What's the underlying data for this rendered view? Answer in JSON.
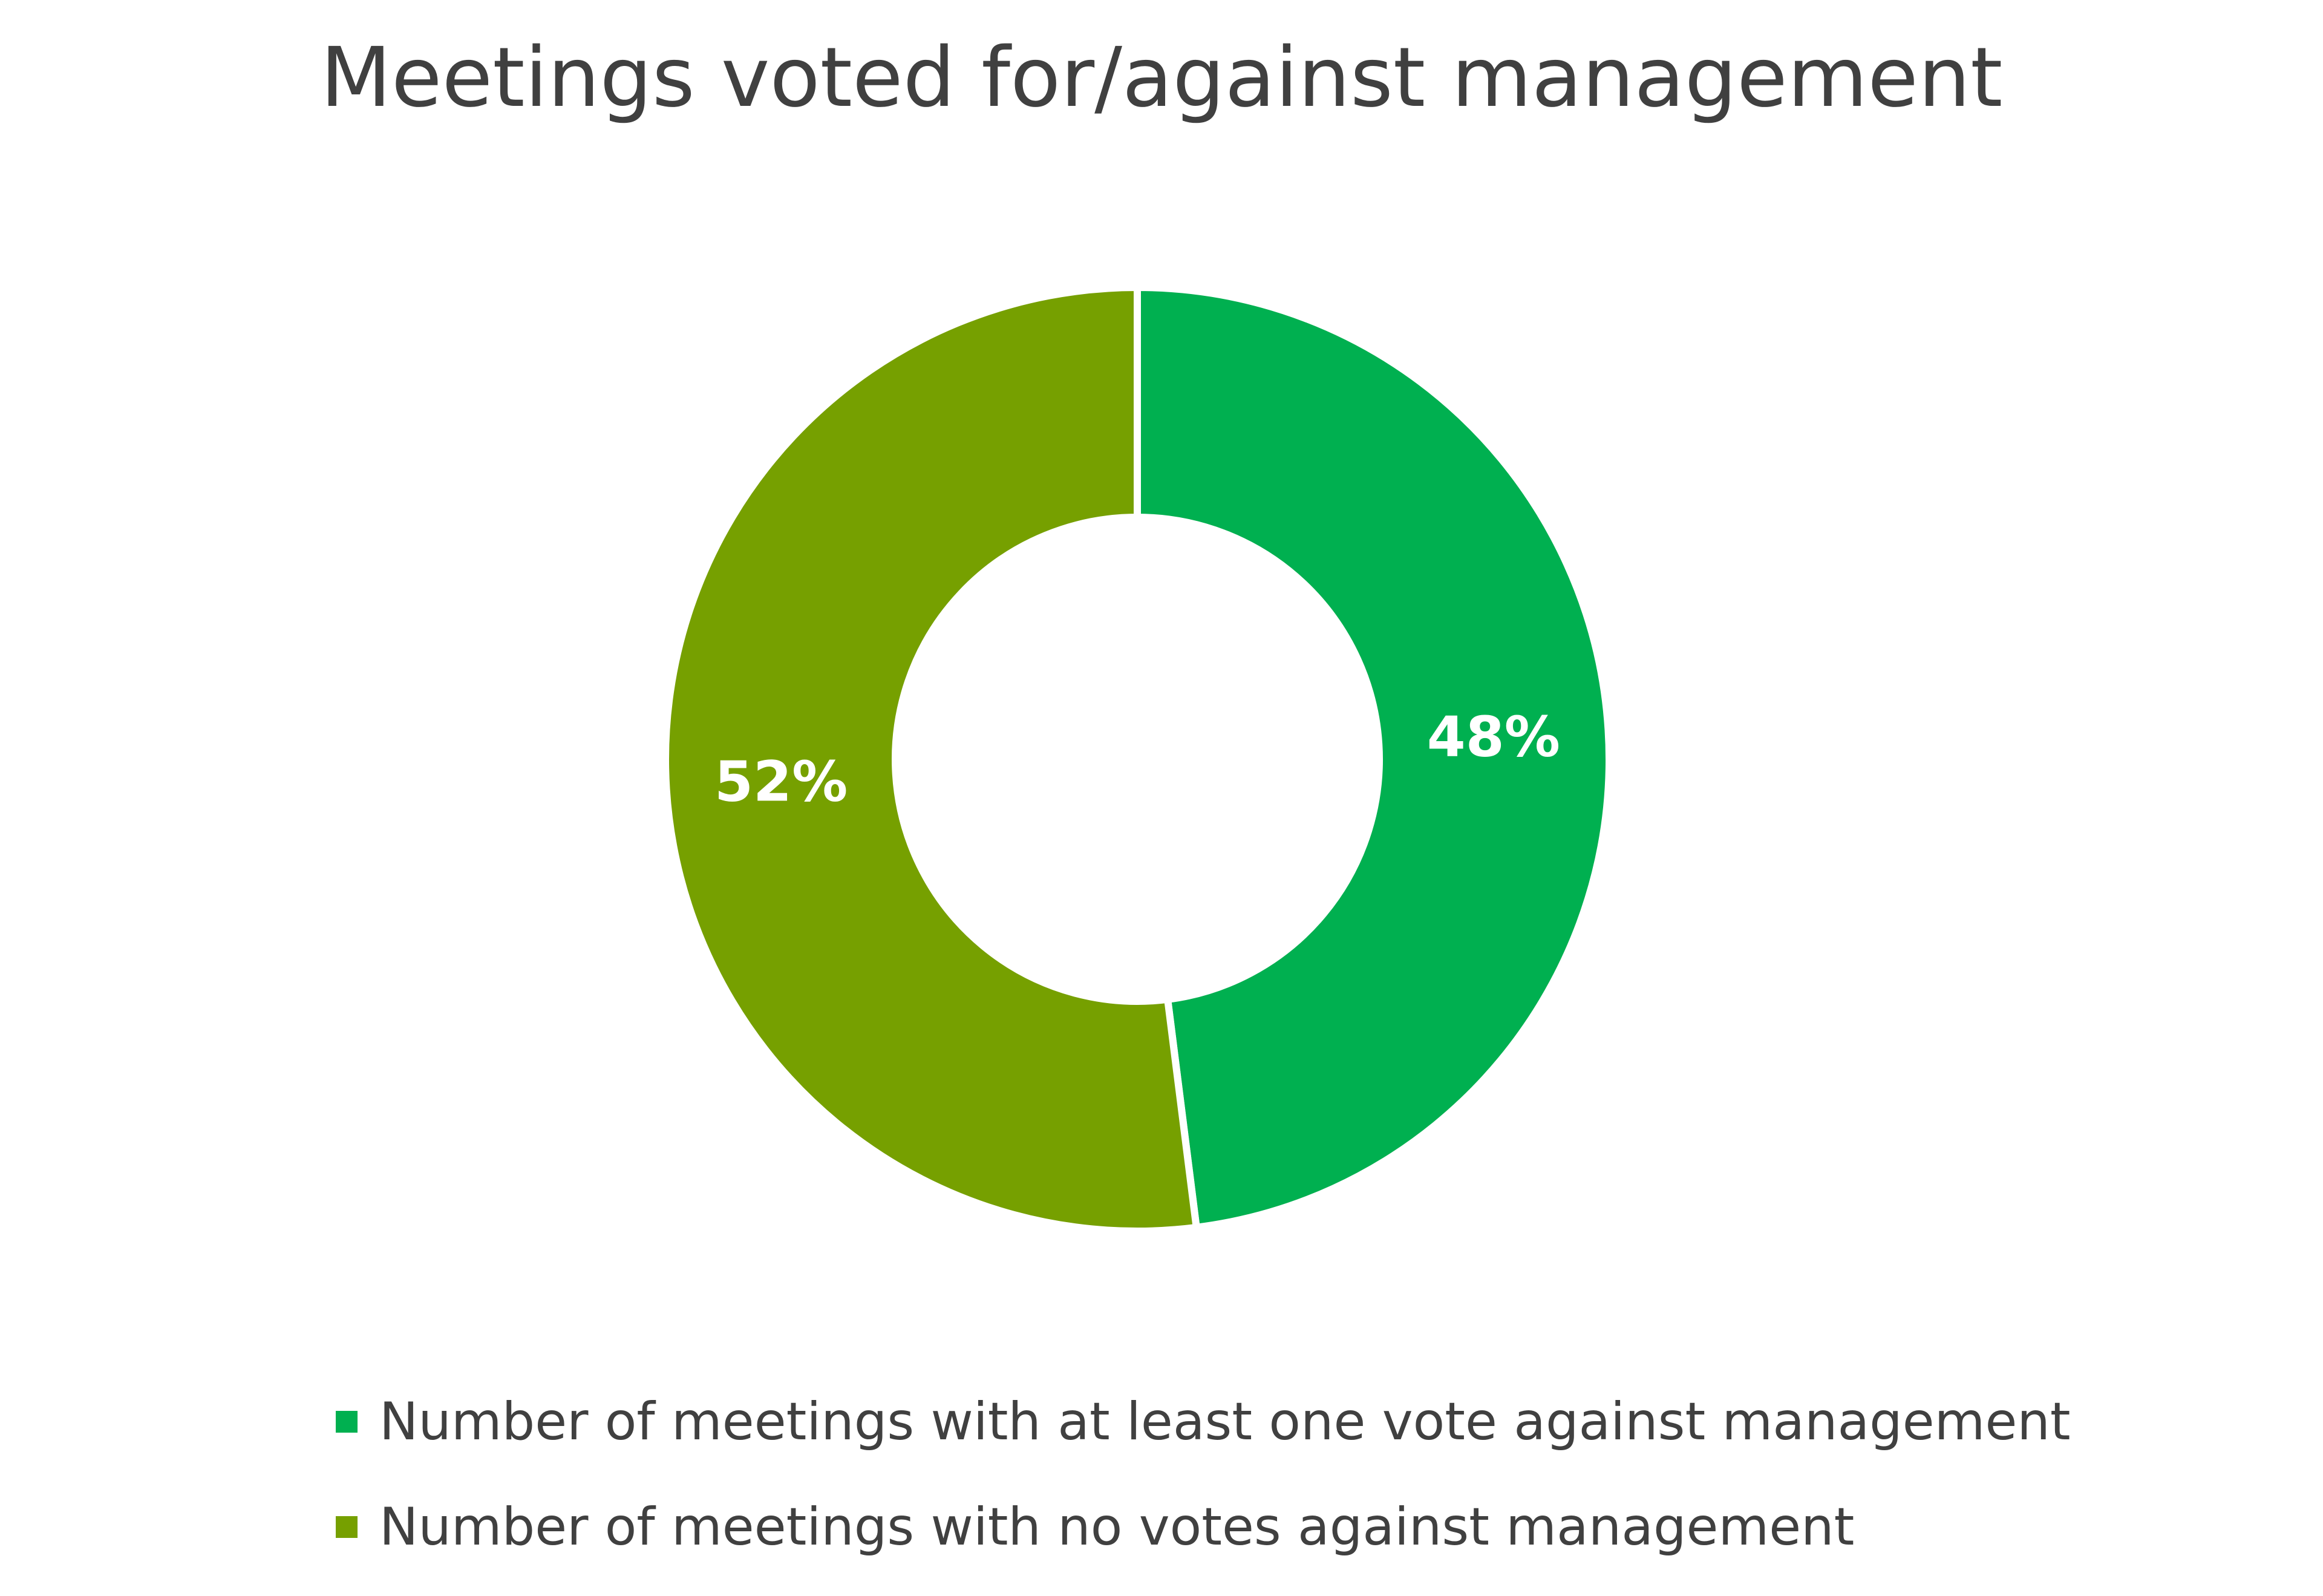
{
  "chart_data": {
    "type": "pie",
    "donut": true,
    "title": "Meetings voted for/against management",
    "categories": [
      "Number of meetings with at least one vote against management",
      "Number of meetings with no votes against management"
    ],
    "values": [
      48,
      52
    ],
    "data_labels": [
      "48%",
      "52%"
    ],
    "colors": [
      "#00B050",
      "#76A000"
    ],
    "legend_position": "bottom"
  }
}
